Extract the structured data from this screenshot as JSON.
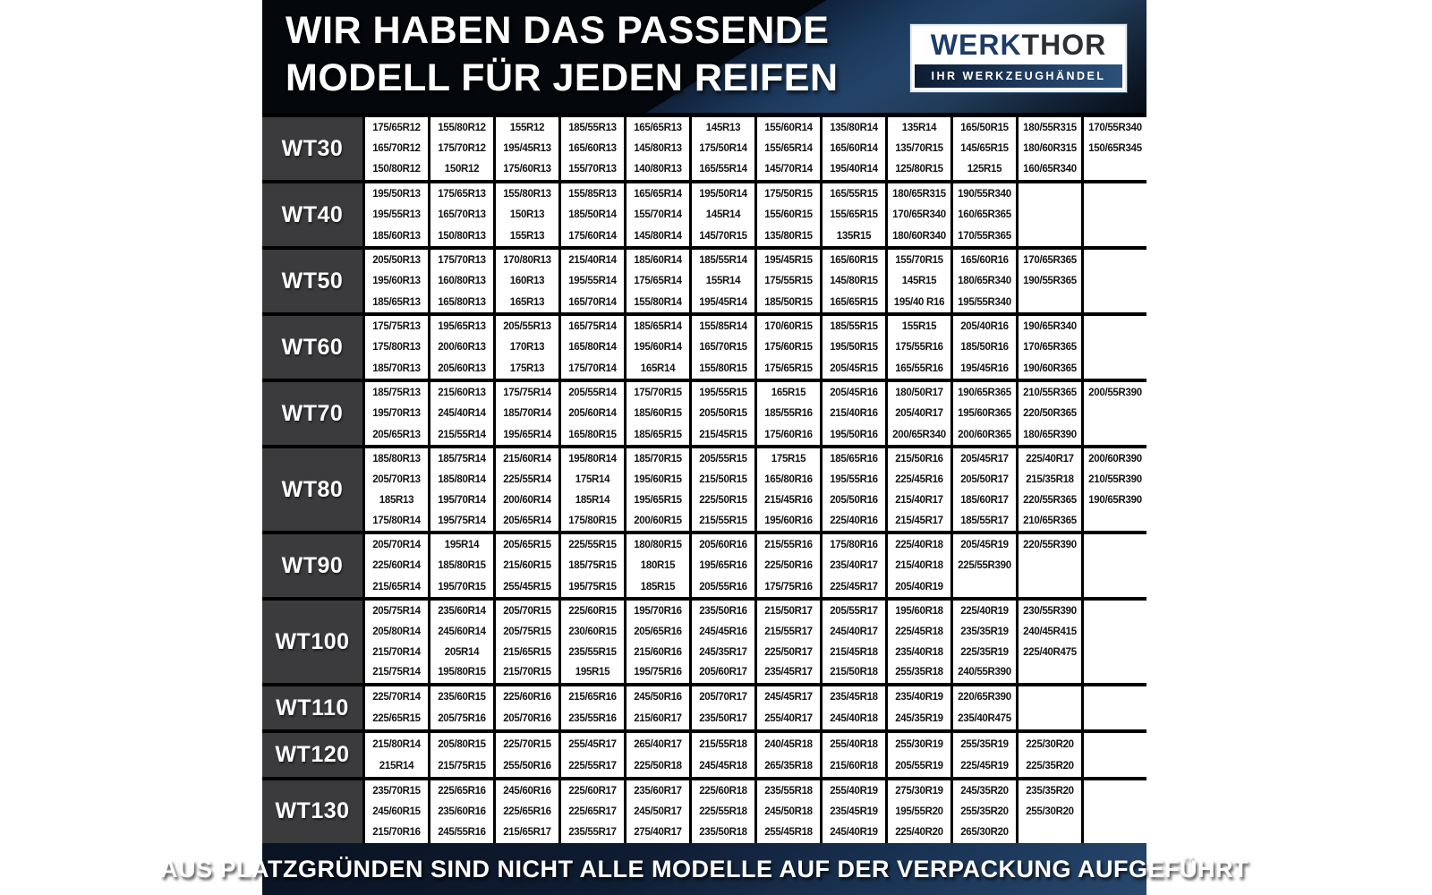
{
  "header": {
    "title_line1": "WIR HABEN DAS PASSENDE",
    "title_line2": "MODELL FÜR JEDEN REIFEN",
    "logo": {
      "werk": "WERK",
      "thor": "THOR",
      "subtitle": "IHR WERKZEUGHÄNDEL"
    }
  },
  "footer": {
    "text": "AUS PLATZGRÜNDEN SIND NICHT ALLE MODELLE AUF DER VERPACKUNG AUFGEFÜHRT"
  },
  "colors": {
    "header_dark": "#04070c",
    "header_blue": "#2d5179",
    "label_cell": "#3b3b3d",
    "grid_line": "#000000",
    "cell_bg": "#ffffff",
    "logo_werk": "#1d3c66",
    "logo_thor": "#2d3033",
    "footer_blue": "#27496e"
  },
  "table": {
    "rows": [
      {
        "model": "WT30",
        "lines": 3,
        "columns": [
          [
            "175/65R12",
            "165/70R12",
            "150/80R12"
          ],
          [
            "155/80R12",
            "175/70R12",
            "150R12"
          ],
          [
            "155R12",
            "195/45R13",
            "175/60R13"
          ],
          [
            "185/55R13",
            "165/60R13",
            "155/70R13"
          ],
          [
            "165/65R13",
            "145/80R13",
            "140/80R13"
          ],
          [
            "145R13",
            "175/50R14",
            "165/55R14"
          ],
          [
            "155/60R14",
            "155/65R14",
            "145/70R14"
          ],
          [
            "135/80R14",
            "165/60R14",
            "195/40R14"
          ],
          [
            "135R14",
            "135/70R15",
            "125/80R15"
          ],
          [
            "165/50R15",
            "145/65R15",
            "125R15"
          ],
          [
            "180/55R315",
            "180/60R315",
            "160/65R340"
          ],
          [
            "170/55R340",
            "150/65R345"
          ]
        ]
      },
      {
        "model": "WT40",
        "lines": 3,
        "columns": [
          [
            "195/50R13",
            "195/55R13",
            "185/60R13"
          ],
          [
            "175/65R13",
            "165/70R13",
            "150/80R13"
          ],
          [
            "155/80R13",
            "150R13",
            "155R13"
          ],
          [
            "155/85R13",
            "185/50R14",
            "175/60R14"
          ],
          [
            "165/65R14",
            "155/70R14",
            "145/80R14"
          ],
          [
            "195/50R14",
            "145R14",
            "145/70R15"
          ],
          [
            "175/50R15",
            "155/60R15",
            "135/80R15"
          ],
          [
            "165/55R15",
            "155/65R15",
            "135R15"
          ],
          [
            "180/65R315",
            "170/65R340",
            "180/60R340"
          ],
          [
            "190/55R340",
            "160/65R365",
            "170/55R365"
          ],
          [],
          []
        ]
      },
      {
        "model": "WT50",
        "lines": 3,
        "columns": [
          [
            "205/50R13",
            "195/60R13",
            "185/65R13"
          ],
          [
            "175/70R13",
            "160/80R13",
            "165/80R13"
          ],
          [
            "170/80R13",
            "160R13",
            "165R13"
          ],
          [
            "215/40R14",
            "195/55R14",
            "165/70R14"
          ],
          [
            "185/60R14",
            "175/65R14",
            "155/80R14"
          ],
          [
            "185/55R14",
            "155R14",
            "195/45R14"
          ],
          [
            "195/45R15",
            "175/55R15",
            "185/50R15"
          ],
          [
            "165/60R15",
            "145/80R15",
            "165/65R15"
          ],
          [
            "155/70R15",
            "145R15",
            "195/40 R16"
          ],
          [
            "165/60R16",
            "180/65R340",
            "195/55R340"
          ],
          [
            "170/65R365",
            "190/55R365"
          ],
          []
        ]
      },
      {
        "model": "WT60",
        "lines": 3,
        "columns": [
          [
            "175/75R13",
            "175/80R13",
            "185/70R13"
          ],
          [
            "195/65R13",
            "200/60R13",
            "205/60R13"
          ],
          [
            "205/55R13",
            "170R13",
            "175R13"
          ],
          [
            "165/75R14",
            "165/80R14",
            "175/70R14"
          ],
          [
            "185/65R14",
            "195/60R14",
            "165R14"
          ],
          [
            "155/85R14",
            "165/70R15",
            "155/80R15"
          ],
          [
            "170/60R15",
            "175/60R15",
            "175/65R15"
          ],
          [
            "185/55R15",
            "195/50R15",
            "205/45R15"
          ],
          [
            "155R15",
            "175/55R16",
            "165/55R16"
          ],
          [
            "205/40R16",
            "185/50R16",
            "195/45R16"
          ],
          [
            "190/65R340",
            "170/65R365",
            "190/60R365"
          ],
          []
        ]
      },
      {
        "model": "WT70",
        "lines": 3,
        "columns": [
          [
            "185/75R13",
            "195/70R13",
            "205/65R13"
          ],
          [
            "215/60R13",
            "245/40R14",
            "215/55R14"
          ],
          [
            "175/75R14",
            "185/70R14",
            "195/65R14"
          ],
          [
            "205/55R14",
            "205/60R14",
            "165/80R15"
          ],
          [
            "175/70R15",
            "185/60R15",
            "185/65R15"
          ],
          [
            "195/55R15",
            "205/50R15",
            "215/45R15"
          ],
          [
            "165R15",
            "185/55R16",
            "175/60R16"
          ],
          [
            "205/45R16",
            "215/40R16",
            "195/50R16"
          ],
          [
            "180/50R17",
            "205/40R17",
            "200/65R340"
          ],
          [
            "190/65R365",
            "195/60R365",
            "200/60R365"
          ],
          [
            "210/55R365",
            "220/50R365",
            "180/65R390"
          ],
          [
            "200/55R390"
          ]
        ]
      },
      {
        "model": "WT80",
        "lines": 4,
        "columns": [
          [
            "185/80R13",
            "205/70R13",
            "185R13",
            "175/80R14"
          ],
          [
            "185/75R14",
            "185/80R14",
            "195/70R14",
            "195/75R14"
          ],
          [
            "215/60R14",
            "225/55R14",
            "200/60R14",
            "205/65R14"
          ],
          [
            "195/80R14",
            "175R14",
            "185R14",
            "175/80R15"
          ],
          [
            "185/70R15",
            "195/60R15",
            "195/65R15",
            "200/60R15"
          ],
          [
            "205/55R15",
            "215/50R15",
            "225/50R15",
            "215/55R15"
          ],
          [
            "175R15",
            "165/80R16",
            "215/45R16",
            "195/60R16"
          ],
          [
            "185/65R16",
            "195/55R16",
            "205/50R16",
            "225/40R16"
          ],
          [
            "215/50R16",
            "225/45R16",
            "215/40R17",
            "215/45R17"
          ],
          [
            "205/45R17",
            "205/50R17",
            "185/60R17",
            "185/55R17"
          ],
          [
            "225/40R17",
            "215/35R18",
            "220/55R365",
            "210/65R365"
          ],
          [
            "200/60R390",
            "210/55R390",
            "190/65R390"
          ]
        ]
      },
      {
        "model": "WT90",
        "lines": 3,
        "columns": [
          [
            "205/70R14",
            "225/60R14",
            "215/65R14"
          ],
          [
            "195R14",
            "185/80R15",
            "195/70R15"
          ],
          [
            "205/65R15",
            "215/60R15",
            "255/45R15"
          ],
          [
            "225/55R15",
            "185/75R15",
            "195/75R15"
          ],
          [
            "180/80R15",
            "180R15",
            "185R15"
          ],
          [
            "205/60R16",
            "195/65R16",
            "205/55R16"
          ],
          [
            "215/55R16",
            "225/50R16",
            "175/75R16"
          ],
          [
            "175/80R16",
            "235/40R17",
            "225/45R17"
          ],
          [
            "225/40R18",
            "215/40R18",
            "205/40R19"
          ],
          [
            "205/45R19",
            "225/55R390"
          ],
          [
            "220/55R390"
          ],
          []
        ]
      },
      {
        "model": "WT100",
        "lines": 4,
        "columns": [
          [
            "205/75R14",
            "205/80R14",
            "215/70R14",
            "215/75R14"
          ],
          [
            "235/60R14",
            "245/60R14",
            "205R14",
            "195/80R15"
          ],
          [
            "205/70R15",
            "205/75R15",
            "215/65R15",
            "215/70R15"
          ],
          [
            "225/60R15",
            "230/60R15",
            "235/55R15",
            "195R15"
          ],
          [
            "195/70R16",
            "205/65R16",
            "215/60R16",
            "195/75R16"
          ],
          [
            "235/50R16",
            "245/45R16",
            "245/35R17",
            "205/60R17"
          ],
          [
            "215/50R17",
            "215/55R17",
            "225/50R17",
            "235/45R17"
          ],
          [
            "205/55R17",
            "245/40R17",
            "215/45R18",
            "215/50R18"
          ],
          [
            "195/60R18",
            "225/45R18",
            "235/40R18",
            "255/35R18"
          ],
          [
            "225/40R19",
            "235/35R19",
            "225/35R19",
            "240/55R390"
          ],
          [
            "230/55R390",
            "240/45R415",
            "225/40R475"
          ],
          []
        ]
      },
      {
        "model": "WT110",
        "lines": 2,
        "columns": [
          [
            "225/70R14",
            "225/65R15"
          ],
          [
            "235/60R15",
            "205/75R16"
          ],
          [
            "225/60R16",
            "205/70R16"
          ],
          [
            "215/65R16",
            "235/55R16"
          ],
          [
            "245/50R16",
            "215/60R17"
          ],
          [
            "205/70R17",
            "235/50R17"
          ],
          [
            "245/45R17",
            "255/40R17"
          ],
          [
            "235/45R18",
            "245/40R18"
          ],
          [
            "235/40R19",
            "245/35R19"
          ],
          [
            "220/65R390",
            "235/40R475"
          ],
          [],
          []
        ]
      },
      {
        "model": "WT120",
        "lines": 2,
        "columns": [
          [
            "215/80R14",
            "215R14"
          ],
          [
            "205/80R15",
            "215/75R15"
          ],
          [
            "225/70R15",
            "255/50R16"
          ],
          [
            "255/45R17",
            "225/55R17"
          ],
          [
            "265/40R17",
            "225/50R18"
          ],
          [
            "215/55R18",
            "245/45R18"
          ],
          [
            "240/45R18",
            "265/35R18"
          ],
          [
            "255/40R18",
            "215/60R18"
          ],
          [
            "255/30R19",
            "205/55R19"
          ],
          [
            "255/35R19",
            "225/45R19"
          ],
          [
            "225/30R20",
            "225/35R20"
          ],
          []
        ]
      },
      {
        "model": "WT130",
        "lines": 3,
        "columns": [
          [
            "235/70R15",
            "245/60R15",
            "215/70R16"
          ],
          [
            "225/65R16",
            "235/60R16",
            "245/55R16"
          ],
          [
            "245/60R16",
            "225/65R16",
            "215/65R17"
          ],
          [
            "225/60R17",
            "225/65R17",
            "235/55R17"
          ],
          [
            "235/60R17",
            "245/50R17",
            "275/40R17"
          ],
          [
            "225/60R18",
            "225/55R18",
            "235/50R18"
          ],
          [
            "235/55R18",
            "245/50R18",
            "255/45R18"
          ],
          [
            "255/40R19",
            "235/45R19",
            "245/40R19"
          ],
          [
            "275/30R19",
            "195/55R20",
            "225/40R20"
          ],
          [
            "245/35R20",
            "255/35R20",
            "265/30R20"
          ],
          [
            "235/35R20",
            "255/30R20"
          ],
          []
        ]
      }
    ]
  }
}
